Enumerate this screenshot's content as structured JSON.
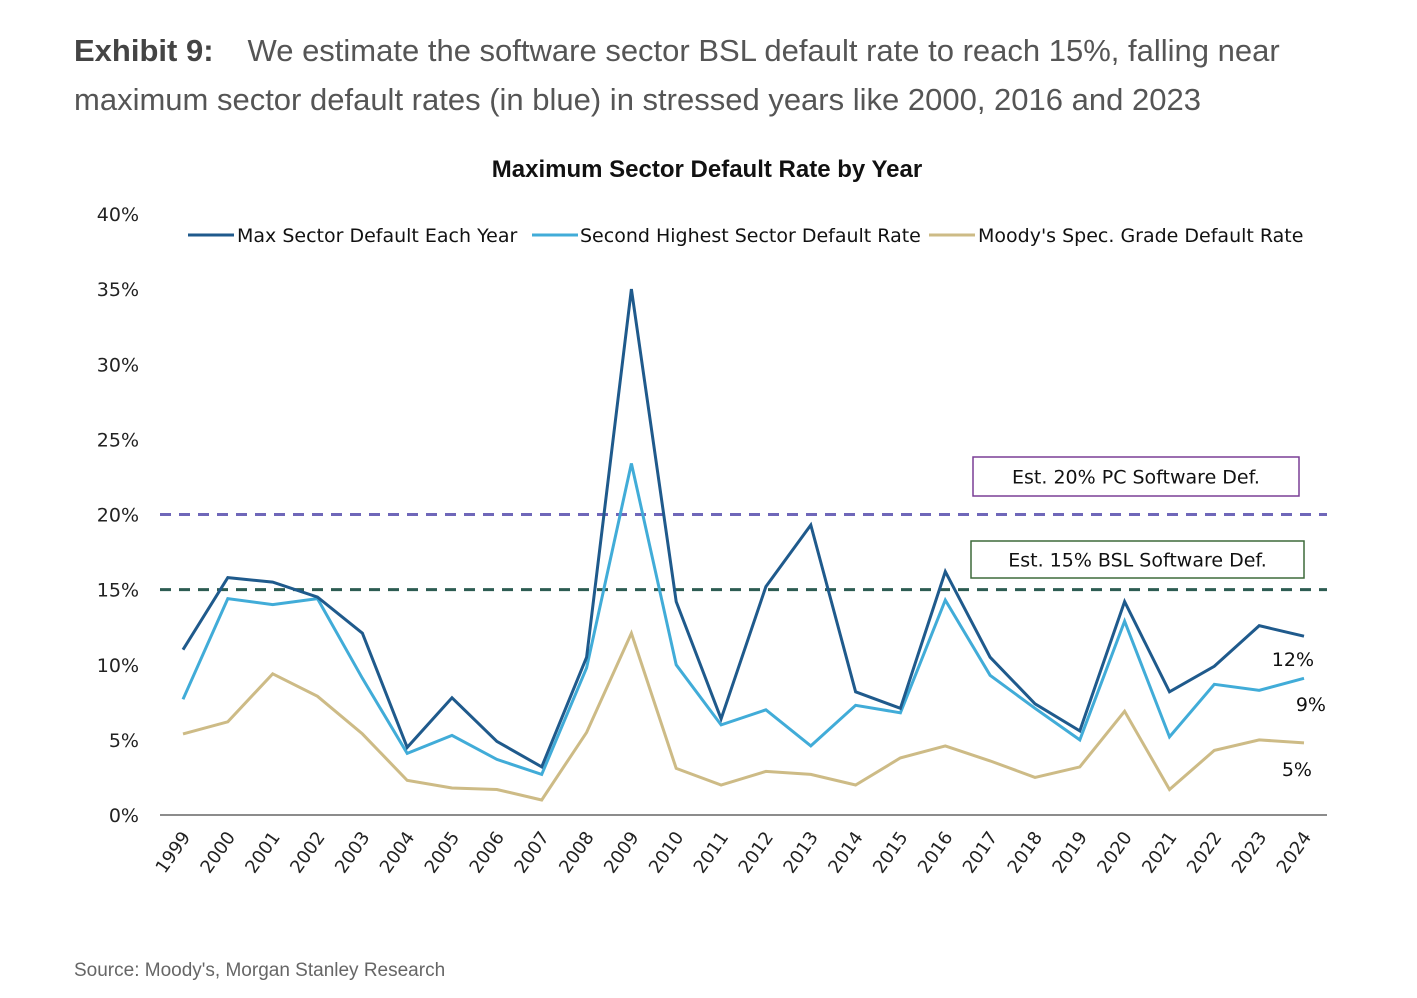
{
  "header": {
    "exhibit_label": "Exhibit 9:",
    "exhibit_text": "We estimate the software sector BSL default rate to reach 15%, falling near maximum sector default rates (in blue) in stressed years like 2000, 2016 and 2023"
  },
  "footer": {
    "source": "Source: Moody's, Morgan Stanley Research"
  },
  "chart_data": {
    "type": "line",
    "title": "Maximum Sector Default Rate by Year",
    "xlabel": "",
    "ylabel": "",
    "ylim": [
      0,
      40
    ],
    "yticks": [
      0,
      5,
      10,
      15,
      20,
      25,
      30,
      35,
      40
    ],
    "ytick_labels": [
      "0%",
      "5%",
      "10%",
      "15%",
      "20%",
      "25%",
      "30%",
      "35%",
      "40%"
    ],
    "legend_position": "top",
    "grid": false,
    "categories": [
      "1999",
      "2000",
      "2001",
      "2002",
      "2003",
      "2004",
      "2005",
      "2006",
      "2007",
      "2008",
      "2009",
      "2010",
      "2011",
      "2012",
      "2013",
      "2014",
      "2015",
      "2016",
      "2017",
      "2018",
      "2019",
      "2020",
      "2021",
      "2022",
      "2023",
      "2024"
    ],
    "series": [
      {
        "name": "Max Sector Default Each Year",
        "color": "#1f5a8c",
        "values": [
          11.0,
          15.8,
          15.5,
          14.5,
          12.1,
          4.5,
          7.8,
          4.9,
          3.2,
          10.5,
          35.0,
          14.2,
          6.4,
          15.2,
          19.3,
          8.2,
          7.1,
          16.2,
          10.5,
          7.4,
          5.6,
          14.2,
          8.2,
          9.9,
          12.6,
          11.9
        ]
      },
      {
        "name": "Second Highest Sector Default Rate",
        "color": "#41acd8",
        "values": [
          7.7,
          14.4,
          14.0,
          14.4,
          9.1,
          4.1,
          5.3,
          3.7,
          2.7,
          9.8,
          23.4,
          10.0,
          6.0,
          7.0,
          4.6,
          7.3,
          6.8,
          14.3,
          9.3,
          7.1,
          5.0,
          12.9,
          5.2,
          8.7,
          8.3,
          9.1
        ]
      },
      {
        "name": "Moody's Spec. Grade Default Rate",
        "color": "#cdbb86",
        "values": [
          5.4,
          6.2,
          9.4,
          7.9,
          5.4,
          2.3,
          1.8,
          1.7,
          1.0,
          5.5,
          12.1,
          3.1,
          2.0,
          2.9,
          2.7,
          2.0,
          3.8,
          4.6,
          3.6,
          2.5,
          3.2,
          6.9,
          1.7,
          4.3,
          5.0,
          4.8
        ]
      }
    ],
    "reference_lines": [
      {
        "value": 20,
        "color": "#6f67b9",
        "label": "Est. 20%  PC Software Def.",
        "box_color": "#7a3f96"
      },
      {
        "value": 15,
        "color": "#2d5c52",
        "label": "Est. 15% BSL Software Def.",
        "box_color": "#3d6a3a"
      }
    ],
    "end_labels": [
      "12%",
      "9%",
      "5%"
    ]
  }
}
